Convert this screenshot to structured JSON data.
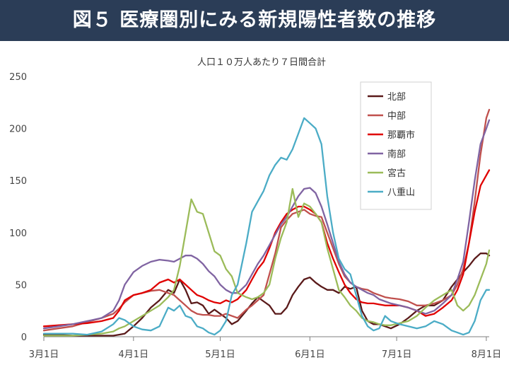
{
  "header": {
    "title": "図５ 医療圏別にみる新規陽性者数の推移"
  },
  "chart_data": {
    "type": "line",
    "title": "人口１０万人あたり７日間合計",
    "xlabel": "",
    "ylabel": "",
    "x_ticks": [
      "3月1日",
      "4月1日",
      "5月1日",
      "6月1日",
      "7月1日",
      "8月1日"
    ],
    "x_tick_days": [
      0,
      31,
      61,
      92,
      122,
      153
    ],
    "xlim": [
      0,
      154
    ],
    "ylim": [
      0,
      250
    ],
    "y_ticks": [
      0,
      50,
      100,
      150,
      200,
      250
    ],
    "grid": false,
    "legend_position": "top-right",
    "x": [
      0,
      5,
      10,
      15,
      20,
      24,
      26,
      28,
      31,
      34,
      37,
      40,
      43,
      45,
      47,
      49,
      51,
      53,
      55,
      57,
      59,
      61,
      63,
      65,
      67,
      70,
      72,
      74,
      76,
      78,
      80,
      82,
      84,
      86,
      88,
      90,
      92,
      94,
      96,
      98,
      100,
      102,
      104,
      106,
      108,
      110,
      112,
      114,
      116,
      118,
      120,
      123,
      126,
      129,
      132,
      135,
      138,
      141,
      143,
      145,
      147,
      149,
      151,
      153,
      154
    ],
    "series": [
      {
        "name": "北部",
        "color": "#5a1a1a",
        "values": [
          2,
          2,
          1,
          1,
          1,
          1,
          2,
          3,
          10,
          18,
          28,
          35,
          45,
          42,
          55,
          45,
          32,
          33,
          30,
          22,
          26,
          22,
          18,
          12,
          15,
          25,
          32,
          38,
          34,
          30,
          22,
          22,
          28,
          40,
          48,
          55,
          57,
          52,
          48,
          45,
          45,
          42,
          48,
          46,
          48,
          25,
          15,
          12,
          12,
          10,
          8,
          12,
          18,
          25,
          30,
          30,
          35,
          48,
          55,
          62,
          68,
          75,
          80,
          80,
          78
        ]
      },
      {
        "name": "中部",
        "color": "#c0504d",
        "values": [
          6,
          8,
          10,
          14,
          18,
          22,
          27,
          33,
          40,
          42,
          44,
          45,
          42,
          40,
          35,
          30,
          25,
          22,
          21,
          21,
          20,
          20,
          22,
          20,
          18,
          26,
          30,
          35,
          40,
          60,
          80,
          105,
          112,
          118,
          120,
          122,
          118,
          116,
          115,
          100,
          85,
          70,
          58,
          52,
          48,
          46,
          45,
          42,
          40,
          38,
          37,
          36,
          34,
          30,
          30,
          32,
          35,
          40,
          50,
          65,
          90,
          130,
          175,
          210,
          218
        ]
      },
      {
        "name": "那覇市",
        "color": "#e00000",
        "values": [
          10,
          11,
          12,
          13,
          15,
          18,
          25,
          35,
          40,
          42,
          45,
          52,
          55,
          52,
          55,
          50,
          45,
          40,
          38,
          35,
          33,
          32,
          35,
          33,
          36,
          45,
          55,
          65,
          72,
          85,
          100,
          110,
          118,
          122,
          125,
          125,
          122,
          118,
          110,
          90,
          75,
          62,
          50,
          42,
          36,
          33,
          32,
          32,
          31,
          30,
          30,
          30,
          28,
          25,
          20,
          22,
          28,
          35,
          45,
          60,
          90,
          120,
          145,
          155,
          160
        ]
      },
      {
        "name": "南部",
        "color": "#8064a2",
        "values": [
          8,
          10,
          12,
          15,
          18,
          25,
          35,
          50,
          62,
          68,
          72,
          74,
          73,
          72,
          75,
          78,
          78,
          75,
          70,
          63,
          58,
          50,
          45,
          42,
          42,
          50,
          60,
          70,
          78,
          88,
          98,
          108,
          115,
          125,
          135,
          142,
          143,
          138,
          125,
          108,
          90,
          72,
          60,
          52,
          48,
          45,
          42,
          40,
          36,
          34,
          32,
          30,
          28,
          25,
          22,
          25,
          32,
          40,
          55,
          72,
          110,
          150,
          185,
          200,
          208
        ]
      },
      {
        "name": "宮古",
        "color": "#9bbb59",
        "values": [
          1,
          1,
          1,
          2,
          3,
          5,
          8,
          10,
          15,
          20,
          25,
          30,
          38,
          45,
          68,
          100,
          132,
          120,
          118,
          100,
          82,
          78,
          65,
          58,
          42,
          38,
          36,
          38,
          42,
          50,
          75,
          95,
          110,
          142,
          115,
          128,
          125,
          118,
          110,
          85,
          65,
          45,
          38,
          30,
          25,
          18,
          15,
          14,
          12,
          11,
          11,
          13,
          15,
          20,
          28,
          35,
          40,
          45,
          30,
          25,
          30,
          40,
          55,
          70,
          83
        ]
      },
      {
        "name": "八重山",
        "color": "#4bacc6",
        "values": [
          3,
          3,
          3,
          2,
          5,
          12,
          18,
          16,
          10,
          7,
          6,
          10,
          28,
          25,
          30,
          20,
          18,
          10,
          8,
          4,
          2,
          6,
          15,
          40,
          50,
          90,
          120,
          130,
          140,
          155,
          165,
          172,
          170,
          180,
          195,
          210,
          205,
          200,
          185,
          135,
          100,
          75,
          65,
          60,
          40,
          20,
          10,
          6,
          8,
          20,
          15,
          12,
          10,
          8,
          10,
          15,
          12,
          6,
          4,
          2,
          4,
          15,
          35,
          45,
          45
        ]
      }
    ]
  }
}
